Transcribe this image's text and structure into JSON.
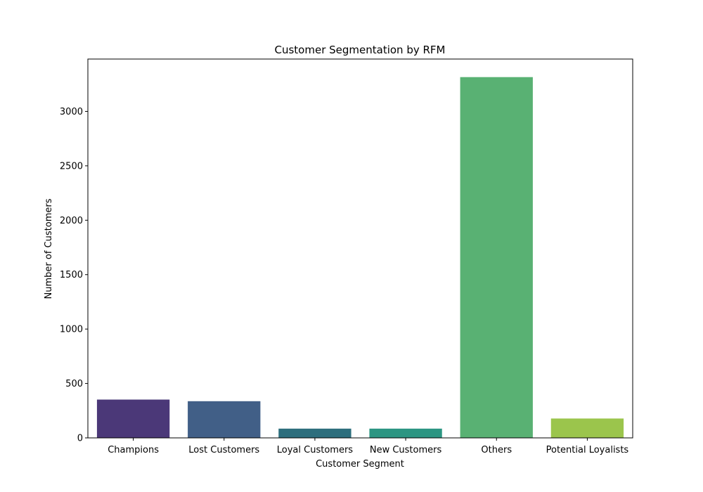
{
  "chart_data": {
    "type": "bar",
    "title": "Customer Segmentation by RFM",
    "xlabel": "Customer Segment",
    "ylabel": "Number of Customers",
    "categories": [
      "Champions",
      "Lost Customers",
      "Loyal Customers",
      "New Customers",
      "Others",
      "Potential Loyalists"
    ],
    "values": [
      352,
      337,
      85,
      85,
      3315,
      178
    ],
    "colors": [
      "#4b3878",
      "#415f87",
      "#2d6e7d",
      "#2c9582",
      "#59b173",
      "#9bc54c"
    ],
    "ylim": [
      0,
      3481
    ],
    "yticks": [
      0,
      500,
      1000,
      1500,
      2000,
      2500,
      3000
    ],
    "grid": false,
    "legend": "none"
  }
}
